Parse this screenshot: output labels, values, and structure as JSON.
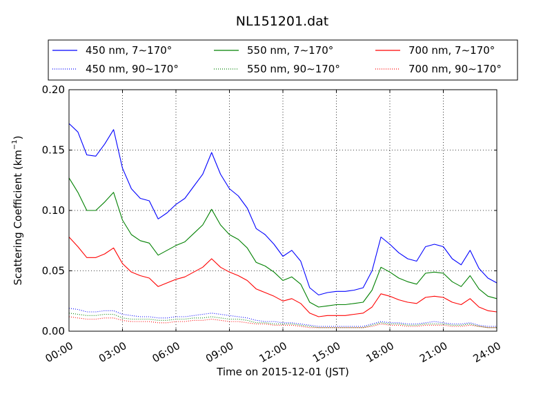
{
  "chart_data": {
    "type": "line",
    "title": "NL151201.dat",
    "xlabel": "Time on 2015-12-01 (JST)",
    "ylabel": "Scattering Coefficient (km",
    "ylabel_sup": "−1",
    "ylabel_close": ")",
    "xlim": [
      "00:00",
      "24:00"
    ],
    "ylim": [
      0.0,
      0.2
    ],
    "grid": true,
    "legend_position": "top",
    "xticks": [
      "00:00",
      "03:00",
      "06:00",
      "09:00",
      "12:00",
      "15:00",
      "18:00",
      "21:00",
      "24:00"
    ],
    "yticks": [
      "0.00",
      "0.05",
      "0.10",
      "0.15",
      "0.20"
    ],
    "x": [
      "00:00",
      "00:30",
      "01:00",
      "01:30",
      "02:00",
      "02:30",
      "03:00",
      "03:30",
      "04:00",
      "04:30",
      "05:00",
      "05:30",
      "06:00",
      "06:30",
      "07:00",
      "07:30",
      "08:00",
      "08:30",
      "09:00",
      "09:30",
      "10:00",
      "10:30",
      "11:00",
      "11:30",
      "12:00",
      "12:30",
      "13:00",
      "13:30",
      "14:00",
      "14:30",
      "15:00",
      "15:30",
      "16:00",
      "16:30",
      "17:00",
      "17:30",
      "18:00",
      "18:30",
      "19:00",
      "19:30",
      "20:00",
      "20:30",
      "21:00",
      "21:30",
      "22:00",
      "22:30",
      "23:00",
      "23:30",
      "24:00"
    ],
    "series": [
      {
        "name": "450 nm, 7∼170°",
        "color": "#0000ff",
        "style": "solid",
        "values": [
          0.172,
          0.165,
          0.146,
          0.145,
          0.155,
          0.167,
          0.135,
          0.118,
          0.11,
          0.108,
          0.093,
          0.098,
          0.105,
          0.11,
          0.12,
          0.13,
          0.148,
          0.13,
          0.118,
          0.112,
          0.102,
          0.085,
          0.08,
          0.072,
          0.062,
          0.067,
          0.058,
          0.036,
          0.03,
          0.032,
          0.033,
          0.033,
          0.034,
          0.036,
          0.05,
          0.078,
          0.072,
          0.065,
          0.06,
          0.058,
          0.07,
          0.072,
          0.07,
          0.06,
          0.055,
          0.067,
          0.052,
          0.044,
          0.04
        ]
      },
      {
        "name": "450 nm, 90∼170°",
        "color": "#0000ff",
        "style": "dotted",
        "values": [
          0.019,
          0.018,
          0.016,
          0.016,
          0.017,
          0.017,
          0.014,
          0.013,
          0.012,
          0.012,
          0.011,
          0.011,
          0.012,
          0.012,
          0.013,
          0.014,
          0.015,
          0.014,
          0.013,
          0.012,
          0.011,
          0.009,
          0.008,
          0.008,
          0.007,
          0.007,
          0.006,
          0.005,
          0.004,
          0.004,
          0.004,
          0.004,
          0.004,
          0.004,
          0.006,
          0.008,
          0.007,
          0.007,
          0.006,
          0.006,
          0.007,
          0.008,
          0.007,
          0.006,
          0.006,
          0.007,
          0.005,
          0.004,
          0.004
        ]
      },
      {
        "name": "550 nm, 7∼170°",
        "color": "#008000",
        "style": "solid",
        "values": [
          0.127,
          0.115,
          0.1,
          0.1,
          0.107,
          0.115,
          0.092,
          0.08,
          0.075,
          0.073,
          0.063,
          0.067,
          0.071,
          0.074,
          0.081,
          0.088,
          0.101,
          0.088,
          0.08,
          0.076,
          0.069,
          0.057,
          0.054,
          0.049,
          0.042,
          0.045,
          0.039,
          0.024,
          0.02,
          0.021,
          0.022,
          0.022,
          0.023,
          0.024,
          0.034,
          0.053,
          0.049,
          0.044,
          0.041,
          0.039,
          0.048,
          0.049,
          0.048,
          0.041,
          0.037,
          0.046,
          0.035,
          0.029,
          0.027
        ]
      },
      {
        "name": "550 nm, 90∼170°",
        "color": "#008000",
        "style": "dotted",
        "values": [
          0.015,
          0.014,
          0.013,
          0.013,
          0.014,
          0.014,
          0.011,
          0.01,
          0.01,
          0.01,
          0.009,
          0.009,
          0.01,
          0.01,
          0.011,
          0.011,
          0.012,
          0.011,
          0.01,
          0.01,
          0.009,
          0.007,
          0.007,
          0.006,
          0.006,
          0.006,
          0.005,
          0.004,
          0.003,
          0.003,
          0.003,
          0.003,
          0.003,
          0.003,
          0.005,
          0.007,
          0.006,
          0.006,
          0.005,
          0.005,
          0.006,
          0.006,
          0.006,
          0.005,
          0.005,
          0.006,
          0.004,
          0.003,
          0.003
        ]
      },
      {
        "name": "700 nm, 7∼170°",
        "color": "#ff0000",
        "style": "solid",
        "values": [
          0.078,
          0.07,
          0.061,
          0.061,
          0.064,
          0.069,
          0.056,
          0.049,
          0.046,
          0.044,
          0.037,
          0.04,
          0.043,
          0.045,
          0.049,
          0.053,
          0.06,
          0.053,
          0.049,
          0.046,
          0.042,
          0.035,
          0.032,
          0.029,
          0.025,
          0.027,
          0.023,
          0.015,
          0.012,
          0.013,
          0.013,
          0.013,
          0.014,
          0.015,
          0.02,
          0.031,
          0.029,
          0.026,
          0.024,
          0.023,
          0.028,
          0.029,
          0.028,
          0.024,
          0.022,
          0.027,
          0.02,
          0.017,
          0.016
        ]
      },
      {
        "name": "700 nm, 90∼170°",
        "color": "#ff0000",
        "style": "dotted",
        "values": [
          0.012,
          0.011,
          0.01,
          0.01,
          0.011,
          0.011,
          0.009,
          0.008,
          0.008,
          0.008,
          0.007,
          0.007,
          0.008,
          0.008,
          0.009,
          0.009,
          0.01,
          0.009,
          0.008,
          0.008,
          0.007,
          0.006,
          0.006,
          0.005,
          0.005,
          0.005,
          0.004,
          0.003,
          0.003,
          0.003,
          0.003,
          0.003,
          0.003,
          0.003,
          0.004,
          0.006,
          0.005,
          0.005,
          0.004,
          0.004,
          0.005,
          0.005,
          0.005,
          0.004,
          0.004,
          0.005,
          0.004,
          0.003,
          0.003
        ]
      }
    ]
  }
}
